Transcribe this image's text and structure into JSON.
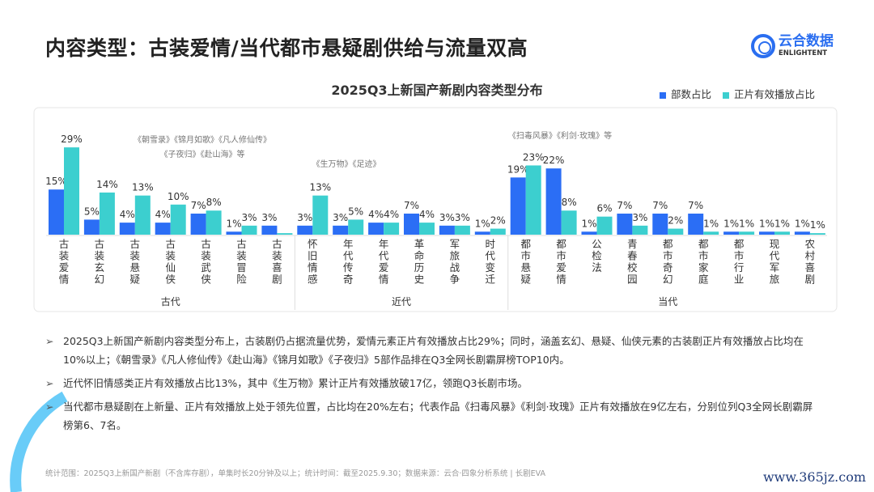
{
  "header": {
    "title": "内容类型：古装爱情/当代都市悬疑剧供给与流量双高",
    "logo_cn": "云合数据",
    "logo_en": "ENLIGHTENT"
  },
  "colors": {
    "series1": "#2b6ef5",
    "series2": "#3ccfcf"
  },
  "chart_data": {
    "type": "bar",
    "title": "2025Q3上新国产新剧内容类型分布",
    "legend_position": "top-right",
    "categories": [
      "古装爱情",
      "古装玄幻",
      "古装悬疑",
      "古装仙侠",
      "古装武侠",
      "古装冒险",
      "古装喜剧",
      "怀旧情感",
      "年代传奇",
      "年代爱情",
      "革命历史",
      "军旅战争",
      "时代变迁",
      "都市悬疑",
      "都市爱情",
      "公检法",
      "青春校园",
      "都市奇幻",
      "都市家庭",
      "都市行业",
      "现代军旅",
      "农村喜剧"
    ],
    "groups": [
      {
        "name": "古代",
        "count": 7
      },
      {
        "name": "近代",
        "count": 6
      },
      {
        "name": "当代",
        "count": 9
      }
    ],
    "series": [
      {
        "name": "部数占比",
        "values": [
          15,
          5,
          4,
          4,
          7,
          1,
          3,
          3,
          3,
          4,
          7,
          3,
          1,
          19,
          22,
          1,
          7,
          7,
          7,
          1,
          1,
          1
        ],
        "labels": [
          "15%",
          "5%",
          "4%",
          "4%",
          "7%",
          "1%",
          "3%",
          "3%",
          "3%",
          "4%",
          "7%",
          "3%",
          "1%",
          "19%",
          "22%",
          "1%",
          "7%",
          "7%",
          "7%",
          "1%",
          "1%",
          "1%"
        ]
      },
      {
        "name": "正片有效播放占比",
        "values": [
          29,
          14,
          13,
          10,
          8,
          3,
          0.5,
          13,
          5,
          4,
          4,
          3,
          2,
          23,
          8,
          6,
          3,
          2,
          1,
          1,
          1,
          0.5
        ],
        "labels": [
          "29%",
          "14%",
          "13%",
          "10%",
          "8%",
          "3%",
          "",
          "13%",
          "5%",
          "4%",
          "4%",
          "3%",
          "2%",
          "23%",
          "8%",
          "6%",
          "3%",
          "2%",
          "1%",
          "1%",
          "1%",
          "1%"
        ]
      }
    ],
    "annotations": [
      {
        "lines": [
          "《朝雪录》《锦月如歌》《凡人修仙传》",
          "《子夜归》《赴山海》等"
        ]
      },
      {
        "lines": [
          "《生万物》《足迹》"
        ]
      },
      {
        "lines": [
          "《扫毒风暴》《利剑·玫瑰》等"
        ]
      }
    ],
    "ylim": [
      0,
      30
    ]
  },
  "bullets": [
    "2025Q3上新国产新剧内容类型分布上，古装剧仍占据流量优势，爱情元素正片有效播放占比29%；同时，涵盖玄幻、悬疑、仙侠元素的古装剧正片有效播放占比均在10%以上；《朝雪录》《凡人修仙传》《赴山海》《锦月如歌》《子夜归》5部作品排在Q3全网长剧霸屏榜TOP10内。",
    "近代怀旧情感类正片有效播放占比13%，其中《生万物》累计正片有效播放破17亿，领跑Q3长剧市场。",
    "当代都市悬疑剧在上新量、正片有效播放上处于领先位置，占比均在20%左右；代表作品《扫毒风暴》《利剑·玫瑰》正片有效播放在9亿左右，分别位列Q3全网长剧霸屏榜第6、7名。"
  ],
  "footer": "统计范围：2025Q3上新国产新剧（不含库存剧），单集时长20分钟及以上；统计时间：截至2025.9.30；数据来源：云合·四象分析系统 | 长剧EVA",
  "watermark": "www.365jz.com"
}
